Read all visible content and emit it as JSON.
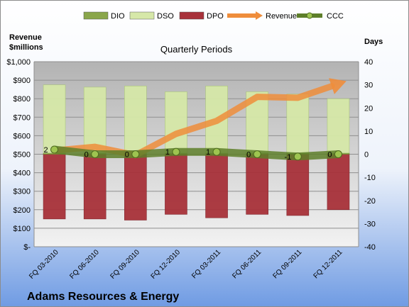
{
  "company": "Adams Resources & Energy",
  "chart_data": {
    "type": "bar",
    "title": "Quarterly Periods",
    "left_axis": {
      "title_line1": "Revenue",
      "title_line2": "$millions",
      "ylim": [
        0,
        1000
      ],
      "ticks": [
        0,
        100,
        200,
        300,
        400,
        500,
        600,
        700,
        800,
        900,
        1000
      ],
      "tick_labels": [
        "$-",
        "$100",
        "$200",
        "$300",
        "$400",
        "$500",
        "$600",
        "$700",
        "$800",
        "$900",
        "$1,000"
      ]
    },
    "right_axis": {
      "title": "Days",
      "ylim": [
        -40,
        40
      ],
      "ticks": [
        40,
        30,
        20,
        10,
        0,
        -10,
        -20,
        -30,
        -40
      ],
      "tick_labels": [
        "40",
        "30",
        "20",
        "10",
        "0",
        "-10",
        "-20",
        "-30",
        "-40"
      ]
    },
    "categories": [
      "FQ 03-2010",
      "FQ 06-2010",
      "FQ 09-2010",
      "FQ 12-2010",
      "FQ 03-2011",
      "FQ 06-2011",
      "FQ 09-2011",
      "FQ 12-2011"
    ],
    "legend": {
      "placement": "top",
      "entries": [
        {
          "name": "DIO",
          "color": "#8aa64a"
        },
        {
          "name": "DSO",
          "color": "#d6e8a8"
        },
        {
          "name": "DPO",
          "color": "#a8323a"
        },
        {
          "name": "Revenue",
          "color": "#ef8d3b"
        },
        {
          "name": "CCC",
          "color": "#5e7f2a"
        }
      ]
    },
    "series": [
      {
        "name": "DIO",
        "axis": "right",
        "values": [
          0.5,
          0.5,
          0.5,
          0.5,
          0.5,
          0.5,
          0.5,
          0.5
        ],
        "color": "#8aa64a"
      },
      {
        "name": "DSO",
        "axis": "right",
        "values": [
          29.5,
          28.5,
          29,
          26.5,
          29,
          26.5,
          25.5,
          23.5
        ],
        "color": "#d6e8a8"
      },
      {
        "name": "DPO",
        "axis": "right",
        "values": [
          -28,
          -28,
          -28.5,
          -26,
          -27.5,
          -26,
          -26.5,
          -24
        ],
        "color": "#a8323a"
      },
      {
        "name": "Revenue",
        "axis": "left",
        "type": "line",
        "values": [
          520,
          540,
          495,
          610,
          680,
          810,
          805,
          880
        ],
        "color": "#ef8d3b"
      },
      {
        "name": "CCC",
        "axis": "right",
        "type": "line",
        "values": [
          2,
          0,
          0,
          1,
          1,
          0,
          -1,
          0
        ],
        "labels": [
          "2",
          "0",
          "0",
          "1",
          "1",
          "0",
          "-1",
          "0"
        ],
        "color": "#5e7f2a"
      }
    ],
    "grid": true
  }
}
